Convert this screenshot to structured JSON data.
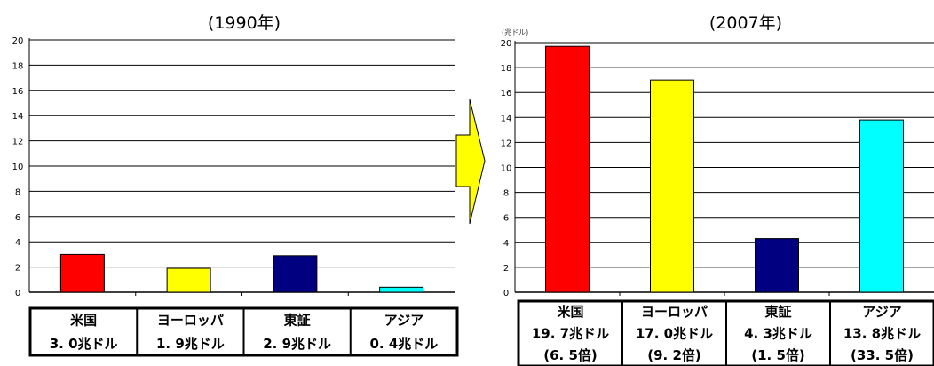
{
  "chart_data": [
    {
      "type": "bar",
      "title": "(1990年)",
      "categories": [
        "米国",
        "ヨーロッパ",
        "東証",
        "アジア"
      ],
      "values": [
        3.0,
        1.9,
        2.9,
        0.4
      ],
      "colors": [
        "#ff0000",
        "#ffff00",
        "#000080",
        "#00ffff"
      ],
      "ylim": [
        0,
        20
      ],
      "yticks": [
        0,
        2,
        4,
        6,
        8,
        10,
        12,
        14,
        16,
        18,
        20
      ],
      "grid": true,
      "table_rows": [
        [
          "米国",
          "3. 0兆ドル"
        ],
        [
          "ヨーロッパ",
          "1. 9兆ドル"
        ],
        [
          "東証",
          "2. 9兆ドル"
        ],
        [
          "アジア",
          "0. 4兆ドル"
        ]
      ]
    },
    {
      "type": "bar",
      "title": "(2007年)",
      "unit_label": "(兆ドル)",
      "categories": [
        "米国",
        "ヨーロッパ",
        "東証",
        "アジア"
      ],
      "values": [
        19.7,
        17.0,
        4.3,
        13.8
      ],
      "colors": [
        "#ff0000",
        "#ffff00",
        "#000080",
        "#00ffff"
      ],
      "ylim": [
        0,
        20
      ],
      "yticks": [
        0,
        2,
        4,
        6,
        8,
        10,
        12,
        14,
        16,
        18,
        20
      ],
      "grid": true,
      "table_rows": [
        [
          "米国",
          "19. 7兆ドル",
          "(6. 5倍)"
        ],
        [
          "ヨーロッパ",
          "17. 0兆ドル",
          "(9. 2倍)"
        ],
        [
          "東証",
          "4. 3兆ドル",
          "(1. 5倍)"
        ],
        [
          "アジア",
          "13. 8兆ドル",
          "(33. 5倍)"
        ]
      ]
    }
  ],
  "arrow_color": "#ffff00"
}
